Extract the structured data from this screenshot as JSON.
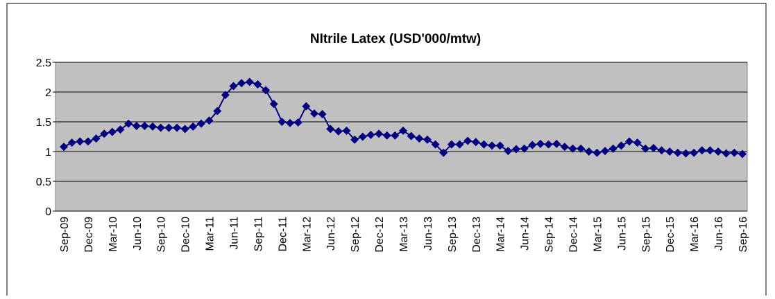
{
  "chart_data": {
    "type": "line",
    "title": "NItrile  Latex (USD'000/mtw)",
    "categories": [
      "Sep-09",
      null,
      null,
      "Dec-09",
      null,
      null,
      "Mar-10",
      null,
      null,
      "Jun-10",
      null,
      null,
      "Sep-10",
      null,
      null,
      "Dec-10",
      null,
      null,
      "Mar-11",
      null,
      null,
      "Jun-11",
      null,
      null,
      "Sep-11",
      null,
      null,
      "Dec-11",
      null,
      null,
      "Mar-12",
      null,
      null,
      "Jun-12",
      null,
      null,
      "Sep-12",
      null,
      null,
      "Dec-12",
      null,
      null,
      "Mar-13",
      null,
      null,
      "Jun-13",
      null,
      null,
      "Sep-13",
      null,
      null,
      "Dec-13",
      null,
      null,
      "Mar-14",
      null,
      null,
      "Jun-14",
      null,
      null,
      "Sep-14",
      null,
      null,
      "Dec-14",
      null,
      null,
      "Mar-15",
      null,
      null,
      "Jun-15",
      null,
      null,
      "Sep-15",
      null,
      null,
      "Dec-15",
      null,
      null,
      "Mar-16",
      null,
      null,
      "Jun-16",
      null,
      null,
      "Sep-16"
    ],
    "values": [
      1.08,
      1.15,
      1.17,
      1.17,
      1.22,
      1.3,
      1.33,
      1.37,
      1.47,
      1.43,
      1.43,
      1.42,
      1.4,
      1.4,
      1.4,
      1.38,
      1.42,
      1.47,
      1.52,
      1.68,
      1.95,
      2.1,
      2.15,
      2.17,
      2.13,
      2.03,
      1.8,
      1.5,
      1.48,
      1.49,
      1.76,
      1.64,
      1.63,
      1.38,
      1.34,
      1.35,
      1.2,
      1.25,
      1.28,
      1.3,
      1.27,
      1.27,
      1.35,
      1.26,
      1.22,
      1.2,
      1.12,
      0.98,
      1.12,
      1.12,
      1.18,
      1.16,
      1.12,
      1.1,
      1.1,
      1.01,
      1.04,
      1.05,
      1.11,
      1.13,
      1.12,
      1.13,
      1.08,
      1.05,
      1.05,
      1.0,
      0.98,
      1.01,
      1.05,
      1.1,
      1.17,
      1.15,
      1.05,
      1.06,
      1.02,
      1.0,
      0.98,
      0.97,
      0.98,
      1.02,
      1.02,
      1.0,
      0.97,
      0.98,
      0.96
    ],
    "color": "#000080",
    "ylim": [
      0,
      2.5
    ],
    "yticks": [
      0,
      0.5,
      1,
      1.5,
      2,
      2.5
    ],
    "grid": true
  }
}
